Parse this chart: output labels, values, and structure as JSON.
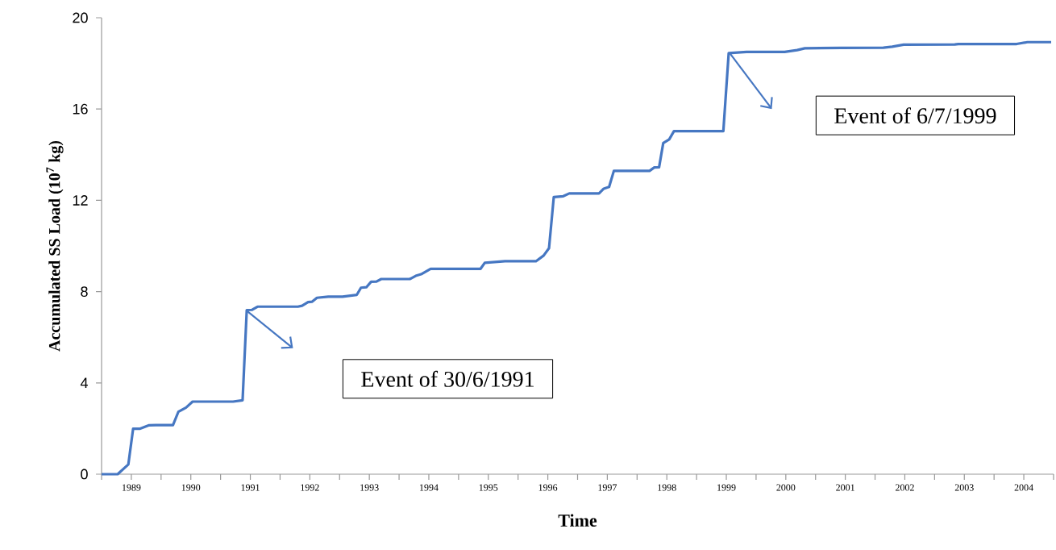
{
  "chart_data": {
    "type": "line",
    "xlabel": "Time",
    "ylabel": "Accumulated SS Load (10$^{7}$ kg)",
    "xlim": [
      1988.5,
      2004.5
    ],
    "ylim": [
      0,
      20
    ],
    "yticks": [
      0,
      4,
      8,
      12,
      16,
      20
    ],
    "xticks": [
      {
        "value": 1988.5,
        "label": null
      },
      1989,
      {
        "value": 1989.5,
        "label": null
      },
      1990,
      {
        "value": 1990.5,
        "label": null
      },
      1991,
      {
        "value": 1991.5,
        "label": null
      },
      1992,
      {
        "value": 1992.5,
        "label": null
      },
      1993,
      {
        "value": 1993.5,
        "label": null
      },
      1994,
      {
        "value": 1994.5,
        "label": null
      },
      1995,
      {
        "value": 1995.5,
        "label": null
      },
      1996,
      {
        "value": 1996.5,
        "label": null
      },
      1997,
      {
        "value": 1997.5,
        "label": null
      },
      1998,
      {
        "value": 1998.5,
        "label": null
      },
      1999,
      {
        "value": 1999.5,
        "label": null
      },
      2000,
      {
        "value": 2000.5,
        "label": null
      },
      2001,
      {
        "value": 2001.5,
        "label": null
      },
      2002,
      {
        "value": 2002.5,
        "label": null
      },
      2003,
      {
        "value": 2003.5,
        "label": null
      },
      2004,
      {
        "value": 2004.5,
        "label": null
      }
    ],
    "grid": false,
    "line_style": "solid",
    "series": [
      {
        "color": "#4677c2",
        "x": [
          1988.5,
          1988.77,
          1988.95,
          1989.03,
          1989.14,
          1989.29,
          1989.41,
          1989.7,
          1989.79,
          1989.92,
          1990.03,
          1990.71,
          1990.87,
          1990.94,
          1991.03,
          1991.12,
          1991.8,
          1991.87,
          1991.97,
          1992.04,
          1992.12,
          1992.31,
          1992.55,
          1992.79,
          1992.86,
          1992.95,
          1993.03,
          1993.12,
          1993.2,
          1993.68,
          1993.78,
          1993.87,
          1994.03,
          1994.87,
          1994.94,
          1995.28,
          1995.8,
          1995.93,
          1996.02,
          1996.1,
          1996.26,
          1996.36,
          1996.86,
          1996.94,
          1997.03,
          1997.11,
          1997.71,
          1997.79,
          1997.87,
          1997.94,
          1998.04,
          1998.12,
          1998.95,
          1999.04,
          1999.34,
          1999.98,
          2000.19,
          2000.32,
          2000.93,
          2001.64,
          2001.79,
          2001.98,
          2002.84,
          2002.9,
          2003.88,
          2004.06,
          2004.46
        ],
        "values": [
          0,
          0,
          0.43,
          1.99,
          1.99,
          2.14,
          2.15,
          2.15,
          2.73,
          2.92,
          3.18,
          3.18,
          3.24,
          7.19,
          7.2,
          7.34,
          7.34,
          7.38,
          7.54,
          7.56,
          7.73,
          7.78,
          7.78,
          7.86,
          8.17,
          8.19,
          8.43,
          8.44,
          8.55,
          8.55,
          8.69,
          8.76,
          9.0,
          9.0,
          9.26,
          9.33,
          9.33,
          9.58,
          9.9,
          12.14,
          12.18,
          12.3,
          12.3,
          12.51,
          12.59,
          13.29,
          13.29,
          13.44,
          13.45,
          14.51,
          14.67,
          15.03,
          15.03,
          18.45,
          18.5,
          18.5,
          18.58,
          18.66,
          18.68,
          18.69,
          18.73,
          18.82,
          18.83,
          18.85,
          18.85,
          18.93,
          18.93
        ]
      }
    ],
    "annotations": [
      "Event of 30/6/1991",
      "Event of  6/7/1999"
    ]
  }
}
